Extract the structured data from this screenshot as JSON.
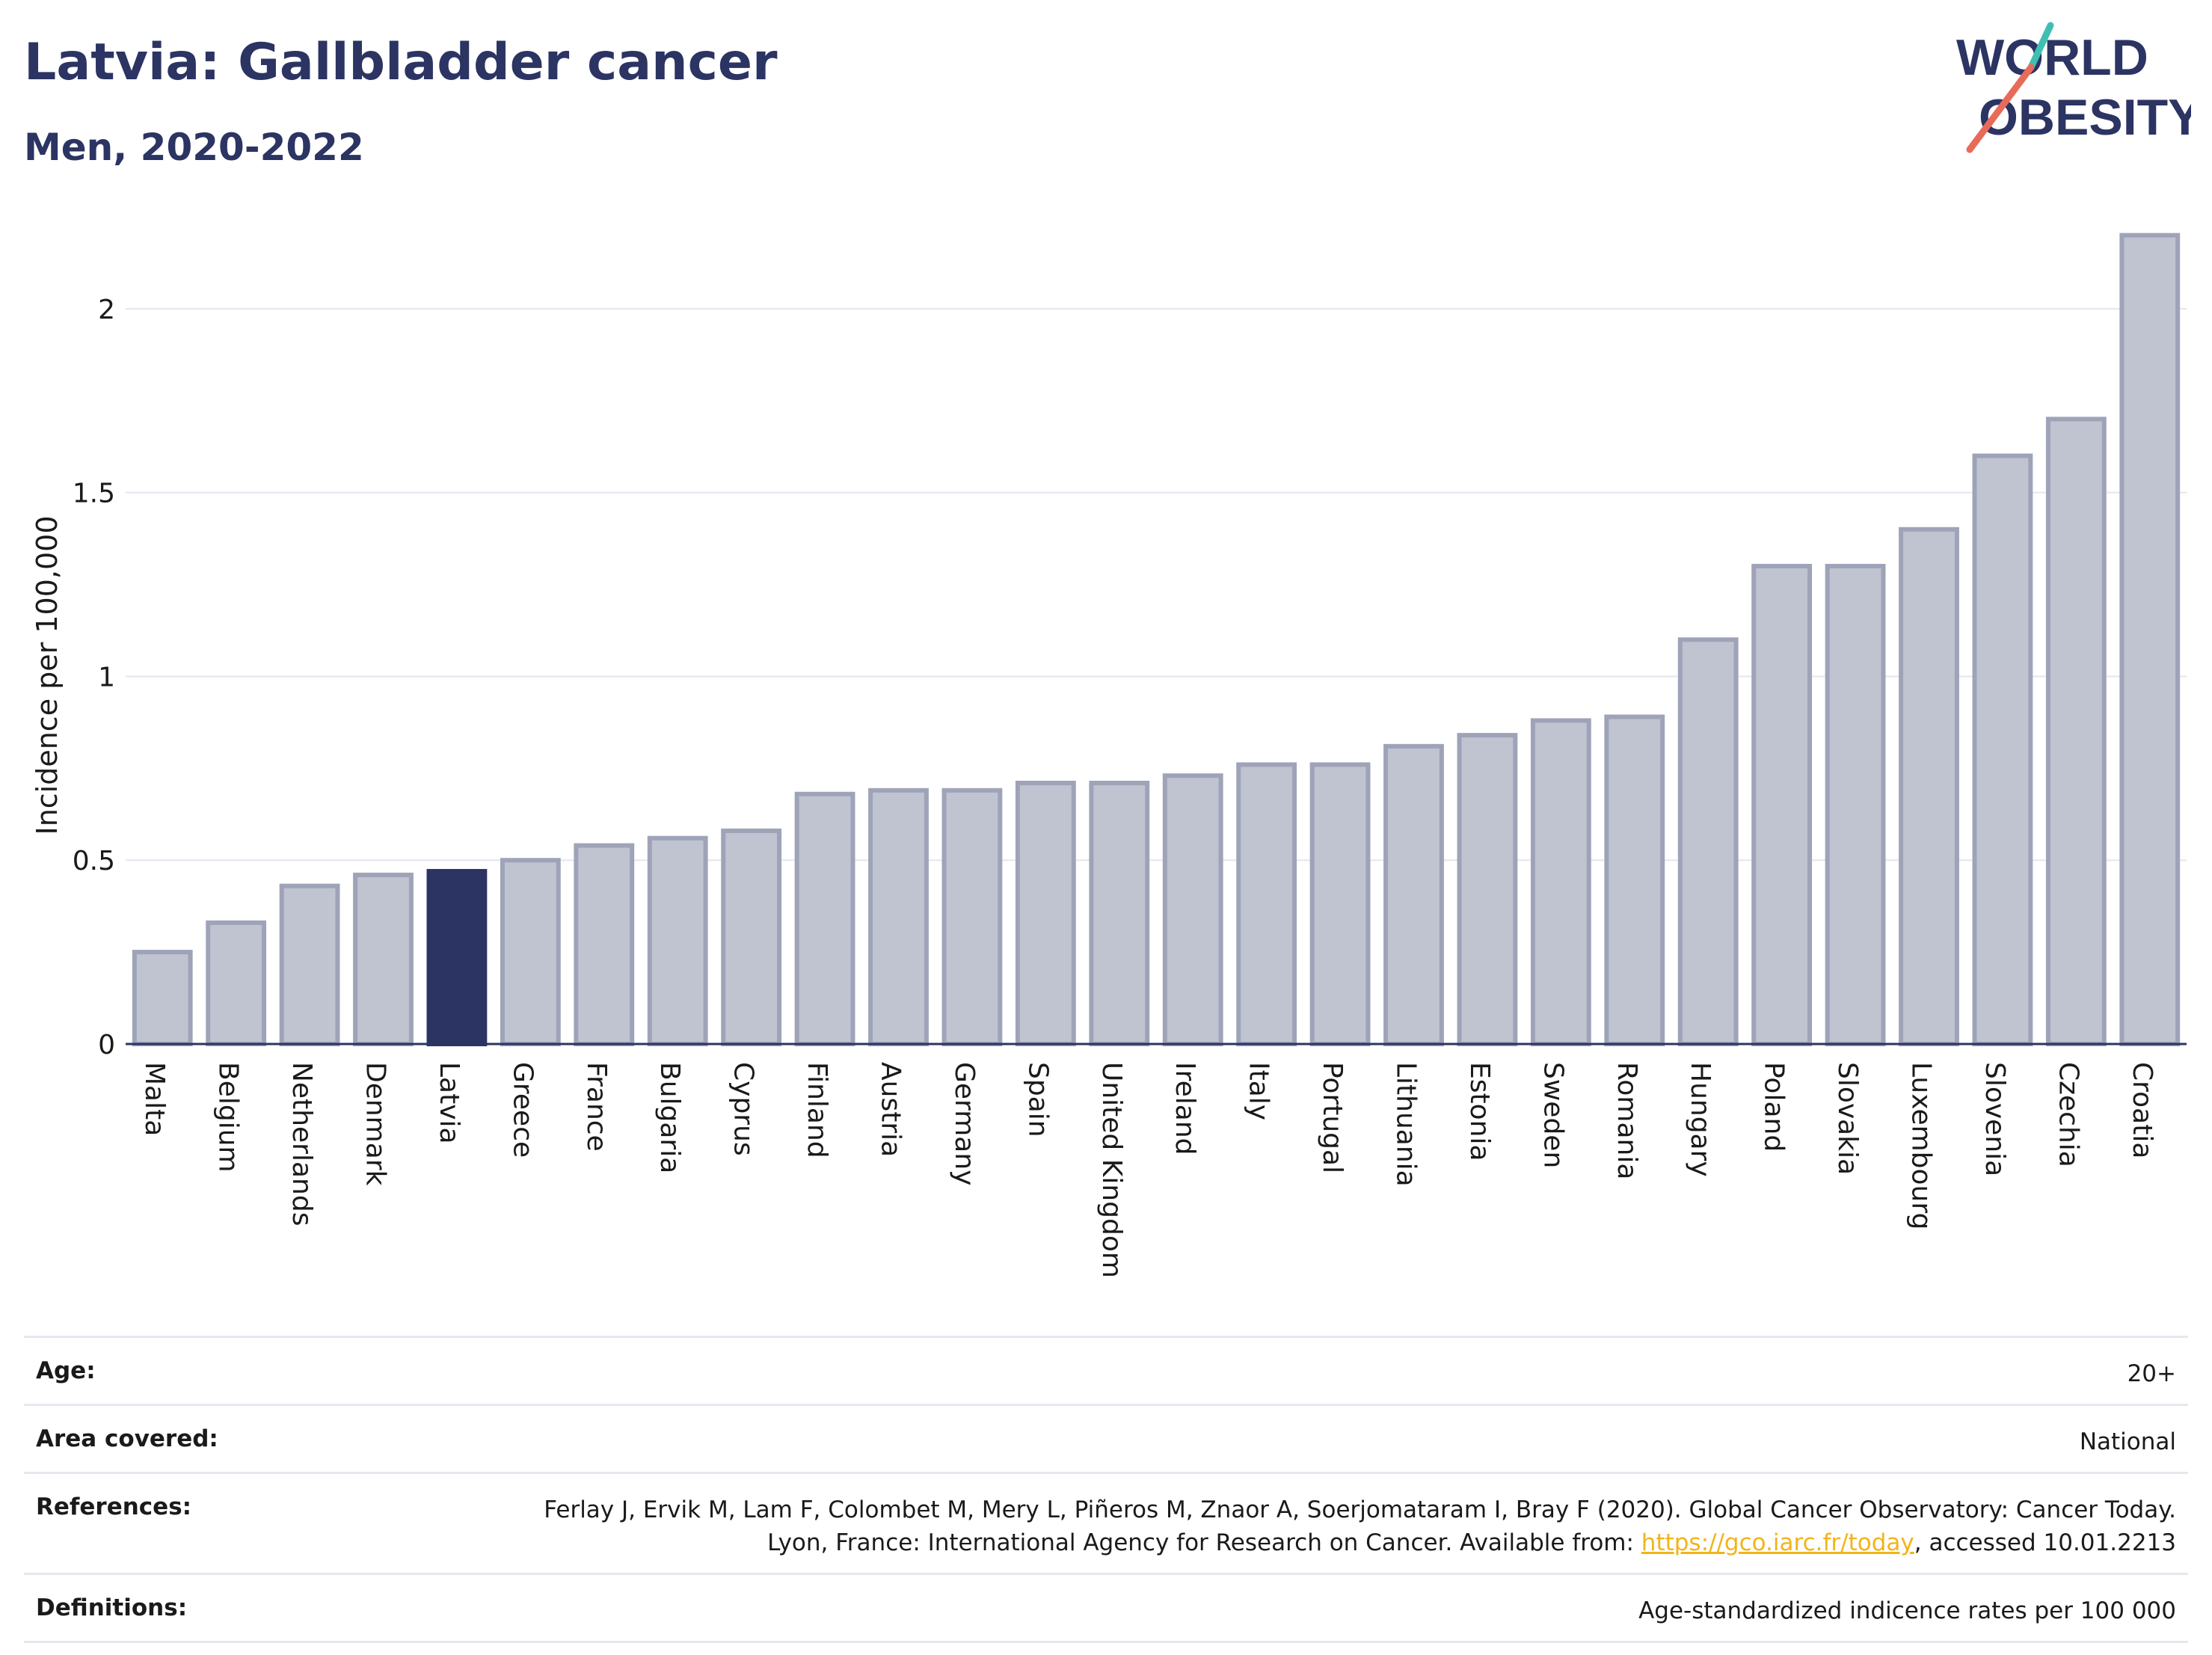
{
  "header": {
    "title": "Latvia: Gallbladder cancer",
    "subtitle": "Men, 2020-2022"
  },
  "logo": {
    "line1": "WORLD",
    "line2": "OBESITY"
  },
  "chart_data": {
    "type": "bar",
    "title": "Latvia: Gallbladder cancer",
    "subtitle": "Men, 2020-2022",
    "xlabel": "",
    "ylabel": "Incidence per 100,000",
    "ylim": [
      0,
      2.25
    ],
    "yticks": [
      0,
      0.5,
      1,
      1.5,
      2
    ],
    "ytick_labels": [
      "0",
      "0.5",
      "1",
      "1.5",
      "2"
    ],
    "grid": true,
    "highlight": "Latvia",
    "colors": {
      "bar": "#c0c3d0",
      "bar_border": "#9ea3b8",
      "highlight": "#2b3462"
    },
    "categories": [
      "Malta",
      "Belgium",
      "Netherlands",
      "Denmark",
      "Latvia",
      "Greece",
      "France",
      "Bulgaria",
      "Cyprus",
      "Finland",
      "Austria",
      "Germany",
      "Spain",
      "United Kingdom",
      "Ireland",
      "Italy",
      "Portugal",
      "Lithuania",
      "Estonia",
      "Sweden",
      "Romania",
      "Hungary",
      "Poland",
      "Slovakia",
      "Luxembourg",
      "Slovenia",
      "Czechia",
      "Croatia"
    ],
    "values": [
      0.25,
      0.33,
      0.43,
      0.46,
      0.47,
      0.5,
      0.54,
      0.56,
      0.58,
      0.68,
      0.69,
      0.69,
      0.71,
      0.71,
      0.73,
      0.76,
      0.76,
      0.81,
      0.84,
      0.88,
      0.89,
      1.1,
      1.3,
      1.3,
      1.4,
      1.6,
      1.7,
      2.2
    ]
  },
  "info": {
    "age_label": "Age:",
    "age_value": "20+",
    "area_label": "Area covered:",
    "area_value": "National",
    "references_label": "References:",
    "references_text_1": "Ferlay J, Ervik M, Lam F, Colombet M, Mery L, Piñeros M, Znaor A, Soerjomataram I, Bray F (2020). Global Cancer Observatory: Cancer Today. Lyon, France: International Agency for Research on Cancer. Available from: ",
    "references_link": "https://gco.iarc.fr/today",
    "references_text_2": ", accessed 10.01.2213",
    "definitions_label": "Definitions:",
    "definitions_value": "Age-standardized indicence rates per 100 000"
  }
}
